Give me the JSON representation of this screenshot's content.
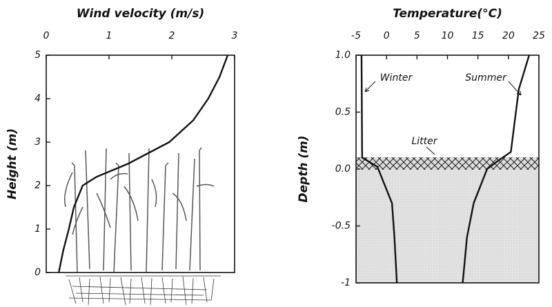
{
  "chart_data": [
    {
      "type": "line",
      "xlabel": "Wind velocity (m/s)",
      "ylabel": "Height (m)",
      "xlim": [
        0,
        3
      ],
      "xticks": [
        0,
        1,
        2,
        3
      ],
      "ylim": [
        0,
        5
      ],
      "yticks": [
        0,
        1,
        2,
        3,
        4,
        5
      ],
      "series": [
        {
          "color": "#111111",
          "x": [
            0.2,
            0.27,
            0.36,
            0.44,
            0.58,
            0.8,
            1.3,
            1.96,
            2.34,
            2.58,
            2.76,
            2.89
          ],
          "y": [
            0,
            0.5,
            1,
            1.5,
            2,
            2.2,
            2.5,
            3,
            3.5,
            4,
            4.5,
            5
          ]
        }
      ]
    },
    {
      "type": "line",
      "xlabel": "Temperature(°C)",
      "ylabel": "Depth (m)",
      "xlim": [
        -5,
        25
      ],
      "xticks": [
        -5,
        0,
        5,
        10,
        15,
        20,
        25
      ],
      "ylim": [
        -1,
        1
      ],
      "yticks": [
        {
          "value": 1,
          "label": "1.0"
        },
        0.5,
        {
          "value": 0,
          "label": "0.0"
        },
        -0.5,
        -1
      ],
      "annotations": [
        "Litter"
      ],
      "series": [
        {
          "name": "Winter",
          "color": "#111111",
          "x": [
            -4.1,
            -4.0,
            -1.5,
            0.9,
            1.3,
            1.7
          ],
          "y": [
            1,
            0.1,
            0.02,
            -0.3,
            -0.6,
            -1
          ]
        },
        {
          "name": "Summer",
          "color": "#111111",
          "x": [
            23.4,
            21.7,
            20.4,
            18.5,
            16.5,
            14.3,
            13.2,
            12.5
          ],
          "y": [
            1,
            0.7,
            0.15,
            0.08,
            0,
            -0.3,
            -0.6,
            -1
          ]
        }
      ]
    }
  ]
}
